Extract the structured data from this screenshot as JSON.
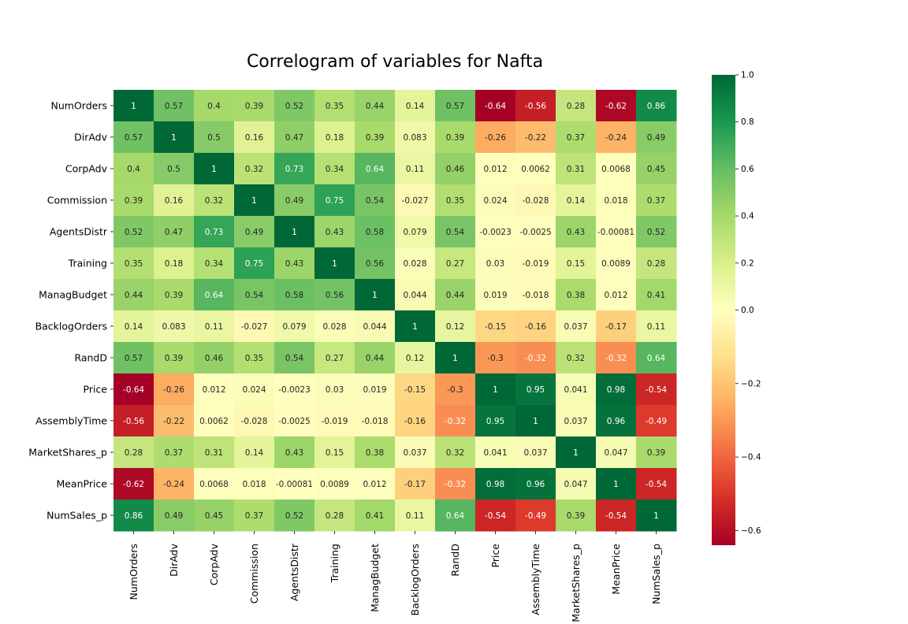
{
  "chart_data": {
    "type": "heatmap",
    "title": "Correlogram of variables for Nafta",
    "xlabel": "",
    "ylabel": "",
    "labels": [
      "NumOrders",
      "DirAdv",
      "CorpAdv",
      "Commission",
      "AgentsDistr",
      "Training",
      "ManagBudget",
      "BacklogOrders",
      "RandD",
      "Price",
      "AssemblyTime",
      "MarketShares_p",
      "MeanPrice",
      "NumSales_p"
    ],
    "matrix": [
      [
        1,
        0.57,
        0.4,
        0.39,
        0.52,
        0.35,
        0.44,
        0.14,
        0.57,
        -0.64,
        -0.56,
        0.28,
        -0.62,
        0.86
      ],
      [
        0.57,
        1,
        0.5,
        0.16,
        0.47,
        0.18,
        0.39,
        0.083,
        0.39,
        -0.26,
        -0.22,
        0.37,
        -0.24,
        0.49
      ],
      [
        0.4,
        0.5,
        1,
        0.32,
        0.73,
        0.34,
        0.64,
        0.11,
        0.46,
        0.012,
        0.0062,
        0.31,
        0.0068,
        0.45
      ],
      [
        0.39,
        0.16,
        0.32,
        1,
        0.49,
        0.75,
        0.54,
        -0.027,
        0.35,
        0.024,
        -0.028,
        0.14,
        0.018,
        0.37
      ],
      [
        0.52,
        0.47,
        0.73,
        0.49,
        1,
        0.43,
        0.58,
        0.079,
        0.54,
        -0.0023,
        -0.0025,
        0.43,
        -0.00081,
        0.52
      ],
      [
        0.35,
        0.18,
        0.34,
        0.75,
        0.43,
        1,
        0.56,
        0.028,
        0.27,
        0.03,
        -0.019,
        0.15,
        0.0089,
        0.28
      ],
      [
        0.44,
        0.39,
        0.64,
        0.54,
        0.58,
        0.56,
        1,
        0.044,
        0.44,
        0.019,
        -0.018,
        0.38,
        0.012,
        0.41
      ],
      [
        0.14,
        0.083,
        0.11,
        -0.027,
        0.079,
        0.028,
        0.044,
        1,
        0.12,
        -0.15,
        -0.16,
        0.037,
        -0.17,
        0.11
      ],
      [
        0.57,
        0.39,
        0.46,
        0.35,
        0.54,
        0.27,
        0.44,
        0.12,
        1,
        -0.3,
        -0.32,
        0.32,
        -0.32,
        0.64
      ],
      [
        -0.64,
        -0.26,
        0.012,
        0.024,
        -0.0023,
        0.03,
        0.019,
        -0.15,
        -0.3,
        1,
        0.95,
        0.041,
        0.98,
        -0.54
      ],
      [
        -0.56,
        -0.22,
        0.0062,
        -0.028,
        -0.0025,
        -0.019,
        -0.018,
        -0.16,
        -0.32,
        0.95,
        1,
        0.037,
        0.96,
        -0.49
      ],
      [
        0.28,
        0.37,
        0.31,
        0.14,
        0.43,
        0.15,
        0.38,
        0.037,
        0.32,
        0.041,
        0.037,
        1,
        0.047,
        0.39
      ],
      [
        -0.62,
        -0.24,
        0.0068,
        0.018,
        -0.00081,
        0.0089,
        0.012,
        -0.17,
        -0.32,
        0.98,
        0.96,
        0.047,
        1,
        -0.54
      ],
      [
        0.86,
        0.49,
        0.45,
        0.37,
        0.52,
        0.28,
        0.41,
        0.11,
        0.64,
        -0.54,
        -0.49,
        0.39,
        -0.54,
        1
      ]
    ],
    "colorscale": "RdYlGn",
    "vmin": -0.64,
    "vmax": 1.0,
    "colorbar_ticks": [
      -0.6,
      -0.4,
      -0.2,
      0.0,
      0.2,
      0.4,
      0.6,
      0.8,
      1.0
    ],
    "colorbar_tick_labels": [
      "−0.6",
      "−0.4",
      "−0.2",
      "0.0",
      "0.2",
      "0.4",
      "0.6",
      "0.8",
      "1.0"
    ],
    "annotations": "cell values shown in each cell",
    "grid": false
  }
}
